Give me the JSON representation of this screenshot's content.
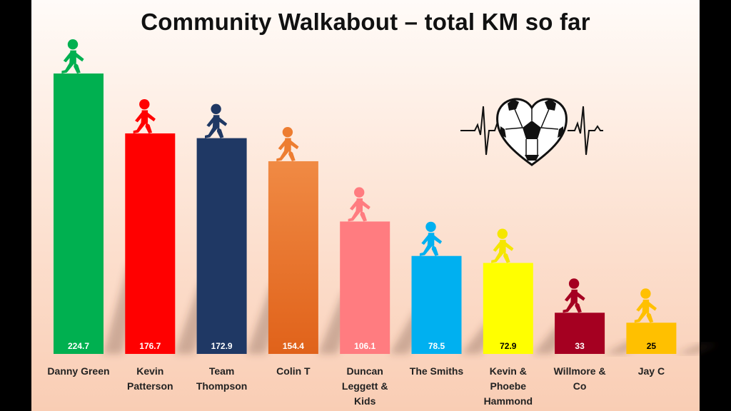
{
  "chart_data": {
    "type": "bar",
    "title": "Community Walkabout – total KM so far",
    "categories": [
      [
        "Danny Green"
      ],
      [
        "Kevin",
        "Patterson"
      ],
      [
        "Team",
        "Thompson"
      ],
      [
        "Colin T"
      ],
      [
        "Duncan",
        "Leggett &",
        "Kids"
      ],
      [
        "The Smiths"
      ],
      [
        "Kevin &",
        "Phoebe",
        "Hammond"
      ],
      [
        "Willmore &",
        "Co"
      ],
      [
        "Jay C"
      ]
    ],
    "values": [
      224.7,
      176.7,
      172.9,
      154.4,
      106.1,
      78.5,
      72.9,
      33,
      25
    ],
    "value_labels": [
      "224.7",
      "176.7",
      "172.9",
      "154.4",
      "106.1",
      "78.5",
      "72.9",
      "33",
      "25"
    ],
    "bar_colors": [
      "#00b050",
      "#ff0000",
      "#1f3864",
      "#ed7d31",
      "#ff7c80",
      "#00b0f0",
      "#ffff00",
      "#a50021",
      "#ffc000"
    ],
    "value_label_colors": [
      "#ffffff",
      "#ffffff",
      "#ffffff",
      "#ffffff",
      "#ffffff",
      "#ffffff",
      "#000000",
      "#ffffff",
      "#000000"
    ],
    "ylim": [
      0,
      230
    ],
    "grid": false,
    "legend": "none",
    "icons": [
      "walking-person-icon",
      "heartbeat-soccer-ball-icon"
    ]
  }
}
